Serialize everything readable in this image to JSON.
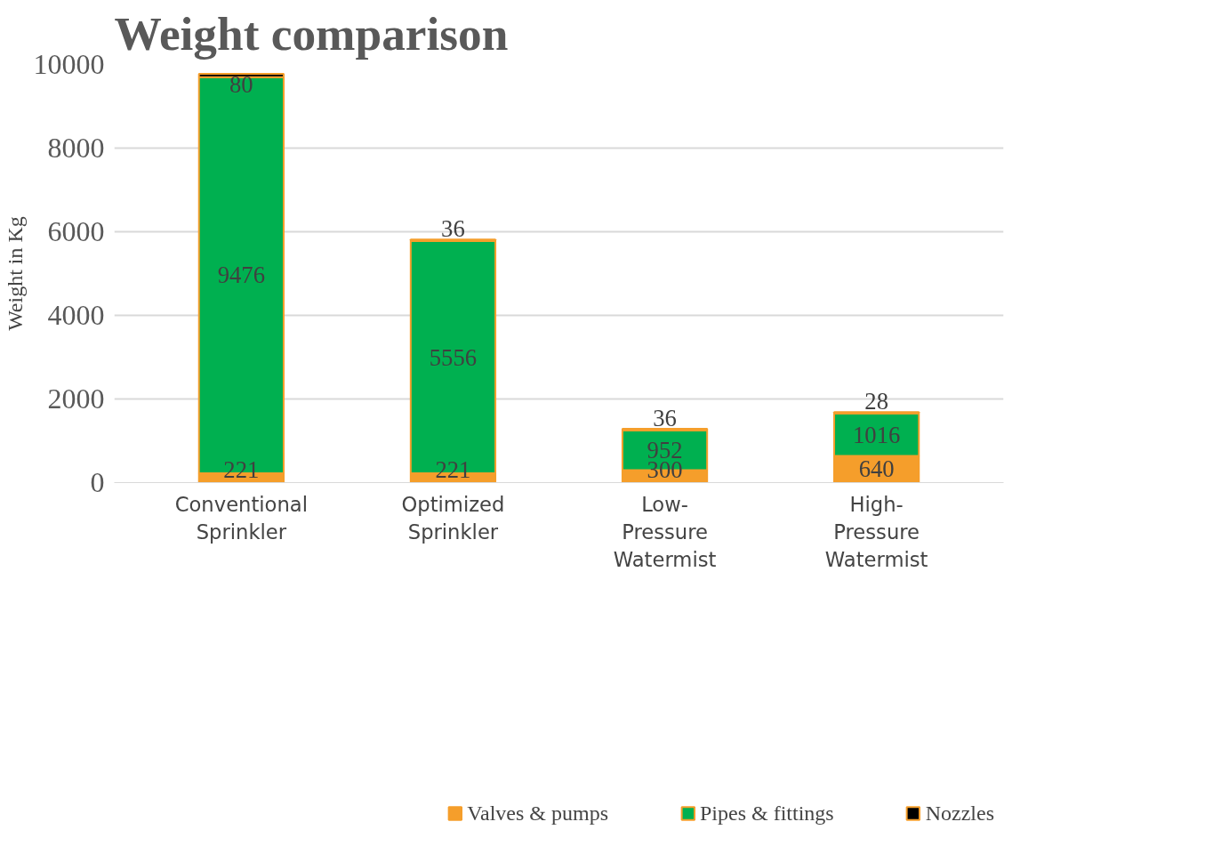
{
  "chart_data": {
    "type": "bar",
    "title": "Weight comparison",
    "ylabel": "Weight in Kg",
    "categories": [
      "Conventional Sprinkler",
      "Optimized Sprinkler",
      "Low-Pressure Watermist",
      "High-Pressure Watermist"
    ],
    "stacked": true,
    "data_labels": true,
    "grid": "y",
    "legend": "bottom",
    "ylim": [
      0,
      10000
    ],
    "yticks": [
      0,
      2000,
      4000,
      6000,
      8000,
      10000
    ],
    "series": [
      {
        "name": "Valves & pumps",
        "color": "#f59e2b",
        "values": [
          221,
          221,
          300,
          640
        ]
      },
      {
        "name": "Pipes & fittings",
        "color": "#00b050",
        "values": [
          9476,
          5556,
          952,
          1016
        ]
      },
      {
        "name": "Nozzles",
        "color": "#000000",
        "values": [
          80,
          36,
          36,
          28
        ]
      }
    ]
  }
}
